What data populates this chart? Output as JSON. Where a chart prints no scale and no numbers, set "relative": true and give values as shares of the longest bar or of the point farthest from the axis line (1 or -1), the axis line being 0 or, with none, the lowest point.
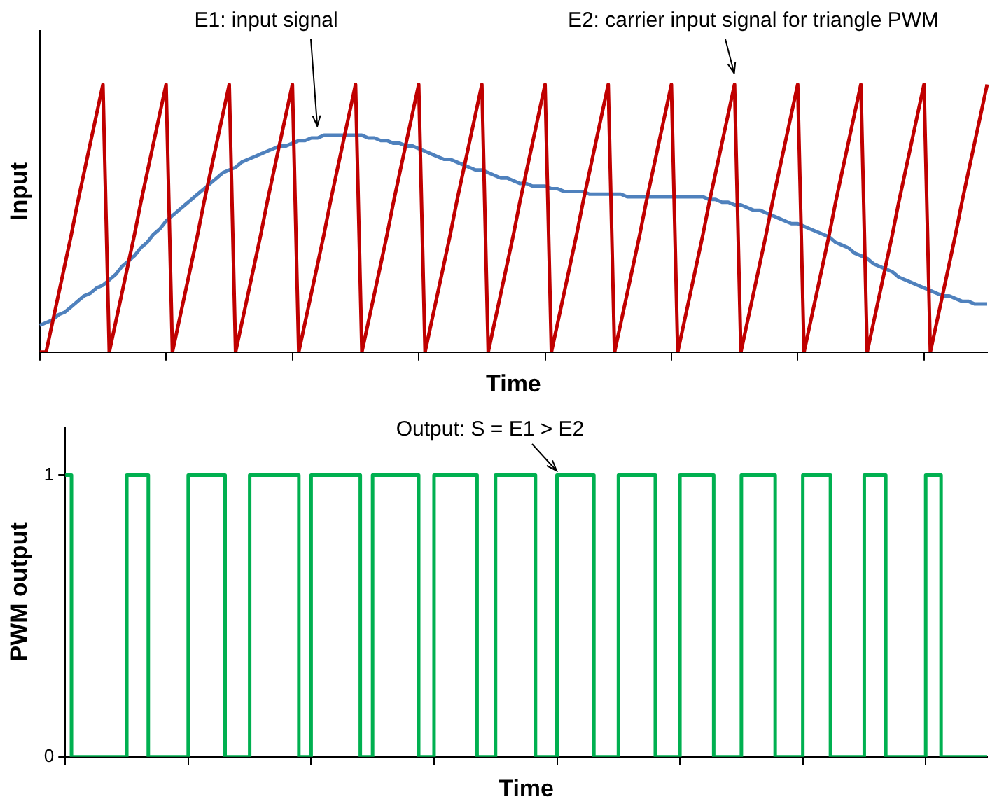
{
  "chart_data": [
    {
      "type": "line",
      "xlabel": "Time",
      "ylabel": "Input",
      "relative": true,
      "tick_labels": false,
      "categories": [
        null,
        null,
        null,
        null,
        null,
        null,
        null,
        null,
        null,
        null,
        null,
        null,
        null,
        null,
        null,
        null,
        null,
        null,
        null,
        null,
        null,
        null,
        null,
        null,
        null,
        null,
        null,
        null,
        null,
        null,
        null,
        null,
        null,
        null,
        null,
        null,
        null,
        null,
        null,
        null,
        null,
        null,
        null,
        null,
        null,
        null,
        null,
        null,
        null,
        null,
        null,
        null,
        null,
        null,
        null,
        null,
        null,
        null,
        null,
        null,
        null,
        null,
        null,
        null,
        null,
        null,
        null,
        null,
        null,
        null,
        null,
        null,
        null,
        null,
        null,
        null,
        null,
        null,
        null,
        null,
        null,
        null,
        null,
        null,
        null,
        null,
        null,
        null,
        null,
        null,
        null,
        null,
        null,
        null,
        null,
        null,
        null,
        null,
        null,
        null,
        null,
        null,
        null,
        null,
        null,
        null,
        null,
        null,
        null,
        null,
        null,
        null,
        null,
        null,
        null,
        null,
        null,
        null,
        null,
        null,
        null,
        null,
        null,
        null,
        null,
        null,
        null,
        null,
        null,
        null,
        null,
        null,
        null,
        null,
        null,
        null,
        null,
        null,
        null,
        null,
        null,
        null,
        null,
        null,
        null,
        null,
        null,
        null,
        null,
        null,
        null
      ],
      "series": [
        {
          "color": "#c00000",
          "values": [
            0,
            0,
            0.11,
            0.22,
            0.33,
            0.44,
            0.56,
            0.67,
            0.78,
            0.89,
            1,
            0,
            0.11,
            0.22,
            0.33,
            0.44,
            0.56,
            0.67,
            0.78,
            0.89,
            1,
            0,
            0.11,
            0.22,
            0.33,
            0.44,
            0.56,
            0.67,
            0.78,
            0.89,
            1,
            0,
            0.11,
            0.22,
            0.33,
            0.44,
            0.56,
            0.67,
            0.78,
            0.89,
            1,
            0,
            0.11,
            0.22,
            0.33,
            0.44,
            0.56,
            0.67,
            0.78,
            0.89,
            1,
            0,
            0.11,
            0.22,
            0.33,
            0.44,
            0.56,
            0.67,
            0.78,
            0.89,
            1,
            0,
            0.11,
            0.22,
            0.33,
            0.44,
            0.56,
            0.67,
            0.78,
            0.89,
            1,
            0,
            0.11,
            0.22,
            0.33,
            0.44,
            0.56,
            0.67,
            0.78,
            0.89,
            1,
            0,
            0.11,
            0.22,
            0.33,
            0.44,
            0.56,
            0.67,
            0.78,
            0.89,
            1,
            0,
            0.11,
            0.22,
            0.33,
            0.44,
            0.56,
            0.67,
            0.78,
            0.89,
            1,
            0,
            0.11,
            0.22,
            0.33,
            0.44,
            0.56,
            0.67,
            0.78,
            0.89,
            1,
            0,
            0.11,
            0.22,
            0.33,
            0.44,
            0.56,
            0.67,
            0.78,
            0.89,
            1,
            0,
            0.11,
            0.22,
            0.33,
            0.44,
            0.56,
            0.67,
            0.78,
            0.89,
            1,
            0,
            0.11,
            0.22,
            0.33,
            0.44,
            0.56,
            0.67,
            0.78,
            0.89,
            1,
            0,
            0.11,
            0.22,
            0.33,
            0.44,
            0.56,
            0.67,
            0.78,
            0.89,
            1
          ]
        },
        {
          "color": "#4f81bd",
          "values": [
            0.1,
            0.11,
            0.12,
            0.14,
            0.15,
            0.17,
            0.19,
            0.21,
            0.22,
            0.24,
            0.25,
            0.27,
            0.29,
            0.32,
            0.34,
            0.36,
            0.39,
            0.41,
            0.44,
            0.46,
            0.49,
            0.51,
            0.53,
            0.55,
            0.57,
            0.59,
            0.61,
            0.63,
            0.65,
            0.67,
            0.68,
            0.69,
            0.71,
            0.72,
            0.73,
            0.74,
            0.75,
            0.76,
            0.77,
            0.77,
            0.78,
            0.79,
            0.79,
            0.8,
            0.8,
            0.81,
            0.81,
            0.81,
            0.81,
            0.81,
            0.81,
            0.81,
            0.8,
            0.8,
            0.79,
            0.79,
            0.78,
            0.78,
            0.77,
            0.77,
            0.76,
            0.75,
            0.74,
            0.73,
            0.72,
            0.72,
            0.71,
            0.7,
            0.69,
            0.68,
            0.68,
            0.67,
            0.66,
            0.65,
            0.65,
            0.64,
            0.63,
            0.63,
            0.62,
            0.62,
            0.62,
            0.61,
            0.61,
            0.6,
            0.6,
            0.6,
            0.6,
            0.59,
            0.59,
            0.59,
            0.59,
            0.59,
            0.59,
            0.58,
            0.58,
            0.58,
            0.58,
            0.58,
            0.58,
            0.58,
            0.58,
            0.58,
            0.58,
            0.58,
            0.58,
            0.58,
            0.57,
            0.57,
            0.56,
            0.56,
            0.55,
            0.55,
            0.54,
            0.53,
            0.53,
            0.52,
            0.51,
            0.5,
            0.49,
            0.48,
            0.48,
            0.47,
            0.46,
            0.45,
            0.44,
            0.43,
            0.41,
            0.4,
            0.39,
            0.37,
            0.36,
            0.35,
            0.33,
            0.32,
            0.31,
            0.3,
            0.28,
            0.27,
            0.26,
            0.25,
            0.24,
            0.23,
            0.22,
            0.21,
            0.21,
            0.2,
            0.19,
            0.19,
            0.18,
            0.18,
            0.18
          ]
        }
      ],
      "annotations": [
        "E1: input signal",
        "E2: carrier input signal for triangle PWM"
      ]
    },
    {
      "type": "step",
      "xlabel": "Time",
      "ylabel": "PWM output",
      "ylim": [
        0,
        1.17
      ],
      "yticks": [
        0,
        1
      ],
      "tick_labels": "y",
      "categories": [
        null,
        null,
        null,
        null,
        null,
        null,
        null,
        null,
        null,
        null,
        null,
        null,
        null,
        null,
        null,
        null,
        null,
        null,
        null,
        null,
        null,
        null,
        null,
        null,
        null,
        null,
        null,
        null,
        null,
        null,
        null,
        null,
        null,
        null,
        null,
        null,
        null,
        null,
        null,
        null,
        null,
        null,
        null,
        null,
        null,
        null,
        null,
        null,
        null,
        null,
        null,
        null,
        null,
        null,
        null,
        null,
        null,
        null,
        null,
        null,
        null,
        null,
        null,
        null,
        null,
        null,
        null,
        null,
        null,
        null,
        null,
        null,
        null,
        null,
        null,
        null,
        null,
        null,
        null,
        null,
        null,
        null,
        null,
        null,
        null,
        null,
        null,
        null,
        null,
        null,
        null,
        null,
        null,
        null,
        null,
        null,
        null,
        null,
        null,
        null,
        null,
        null,
        null,
        null,
        null,
        null,
        null,
        null,
        null,
        null,
        null,
        null,
        null,
        null,
        null,
        null,
        null,
        null,
        null,
        null,
        null,
        null,
        null,
        null,
        null,
        null,
        null,
        null,
        null,
        null,
        null,
        null,
        null,
        null,
        null,
        null,
        null,
        null,
        null,
        null,
        null,
        null,
        null,
        null,
        null,
        null,
        null,
        null,
        null,
        null,
        null,
        null,
        null,
        null,
        null,
        null,
        null,
        null,
        null,
        null,
        null,
        null,
        null,
        null,
        null,
        null,
        null,
        null,
        null,
        null,
        null,
        null,
        null,
        null,
        null,
        null,
        null,
        null,
        null,
        null,
        null,
        null,
        null,
        null,
        null,
        null,
        null,
        null,
        null,
        null,
        null,
        null,
        null,
        null,
        null,
        null,
        null,
        null,
        null,
        null,
        null,
        null,
        null,
        null,
        null,
        null,
        null,
        null,
        null,
        null,
        null,
        null,
        null,
        null,
        null,
        null,
        null,
        null,
        null,
        null,
        null,
        null,
        null,
        null,
        null,
        null,
        null,
        null,
        null,
        null,
        null,
        null,
        null,
        null,
        null,
        null,
        null,
        null,
        null,
        null,
        null,
        null,
        null,
        null,
        null,
        null,
        null,
        null,
        null,
        null,
        null,
        null,
        null,
        null,
        null,
        null,
        null,
        null,
        null,
        null,
        null,
        null,
        null,
        null,
        null,
        null,
        null,
        null,
        null,
        null,
        null,
        null,
        null,
        null,
        null,
        null,
        null,
        null,
        null,
        null,
        null,
        null,
        null,
        null,
        null,
        null,
        null,
        null,
        null,
        null,
        null,
        null,
        null,
        null,
        null,
        null,
        null,
        null,
        null,
        null,
        null
      ],
      "series": [
        {
          "color": "#00b050",
          "values": [
            1,
            1,
            0,
            0,
            0,
            0,
            0,
            0,
            0,
            0,
            0,
            0,
            0,
            0,
            0,
            0,
            0,
            0,
            0,
            0,
            1,
            1,
            1,
            1,
            1,
            1,
            1,
            0,
            0,
            0,
            0,
            0,
            0,
            0,
            0,
            0,
            0,
            0,
            0,
            0,
            1,
            1,
            1,
            1,
            1,
            1,
            1,
            1,
            1,
            1,
            1,
            1,
            0,
            0,
            0,
            0,
            0,
            0,
            0,
            0,
            1,
            1,
            1,
            1,
            1,
            1,
            1,
            1,
            1,
            1,
            1,
            1,
            1,
            1,
            1,
            1,
            0,
            0,
            0,
            0,
            1,
            1,
            1,
            1,
            1,
            1,
            1,
            1,
            1,
            1,
            1,
            1,
            1,
            1,
            1,
            1,
            0,
            0,
            0,
            0,
            1,
            1,
            1,
            1,
            1,
            1,
            1,
            1,
            1,
            1,
            1,
            1,
            1,
            1,
            1,
            0,
            0,
            0,
            0,
            0,
            1,
            1,
            1,
            1,
            1,
            1,
            1,
            1,
            1,
            1,
            1,
            1,
            1,
            1,
            0,
            0,
            0,
            0,
            0,
            0,
            1,
            1,
            1,
            1,
            1,
            1,
            1,
            1,
            1,
            1,
            1,
            1,
            1,
            0,
            0,
            0,
            0,
            0,
            0,
            0,
            1,
            1,
            1,
            1,
            1,
            1,
            1,
            1,
            1,
            1,
            1,
            1,
            0,
            0,
            0,
            0,
            0,
            0,
            0,
            0,
            1,
            1,
            1,
            1,
            1,
            1,
            1,
            1,
            1,
            1,
            1,
            1,
            0,
            0,
            0,
            0,
            0,
            0,
            0,
            0,
            1,
            1,
            1,
            1,
            1,
            1,
            1,
            1,
            1,
            1,
            1,
            0,
            0,
            0,
            0,
            0,
            0,
            0,
            0,
            0,
            1,
            1,
            1,
            1,
            1,
            1,
            1,
            1,
            1,
            1,
            1,
            0,
            0,
            0,
            0,
            0,
            0,
            0,
            0,
            0,
            1,
            1,
            1,
            1,
            1,
            1,
            1,
            1,
            1,
            0,
            0,
            0,
            0,
            0,
            0,
            0,
            0,
            0,
            0,
            0,
            1,
            1,
            1,
            1,
            1,
            1,
            1,
            0,
            0,
            0,
            0,
            0,
            0,
            0,
            0,
            0,
            0,
            0,
            0,
            0,
            1,
            1,
            1,
            1,
            1,
            0,
            0,
            0,
            0,
            0,
            0,
            0,
            0,
            0,
            0,
            0,
            0,
            0,
            0,
            0,
            0
          ]
        }
      ],
      "annotations": [
        "Output: S = E1 > E2"
      ]
    }
  ]
}
